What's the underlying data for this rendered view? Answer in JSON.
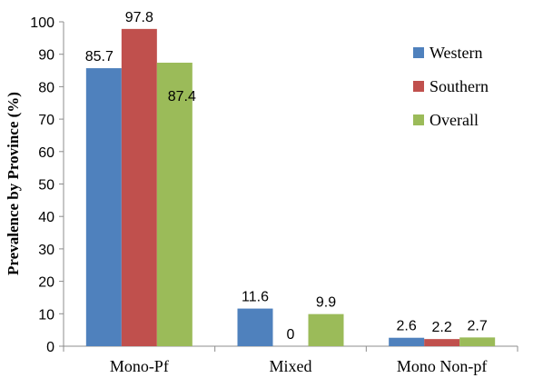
{
  "chart_data": {
    "type": "bar",
    "title": "",
    "xlabel": "",
    "ylabel": "Prevalence  by Province (%)",
    "ylim": [
      0,
      100
    ],
    "yticks": [
      0,
      10,
      20,
      30,
      40,
      50,
      60,
      70,
      80,
      90,
      100
    ],
    "grid": false,
    "legend_position": "right",
    "categories": [
      "Mono-Pf",
      "Mixed",
      "Mono Non-pf"
    ],
    "series": [
      {
        "name": "Western",
        "color": "#4F81BD",
        "values": [
          85.7,
          11.6,
          2.6
        ],
        "labels": [
          "85.7",
          "11.6",
          "2.6"
        ]
      },
      {
        "name": "Southern",
        "color": "#C0504D",
        "values": [
          97.8,
          0,
          2.2
        ],
        "labels": [
          "97.8",
          "0",
          "2.2"
        ]
      },
      {
        "name": "Overall",
        "color": "#9BBB59",
        "values": [
          87.4,
          9.9,
          2.7
        ],
        "labels": [
          "87.4",
          "9.9",
          "2.7"
        ]
      }
    ]
  }
}
